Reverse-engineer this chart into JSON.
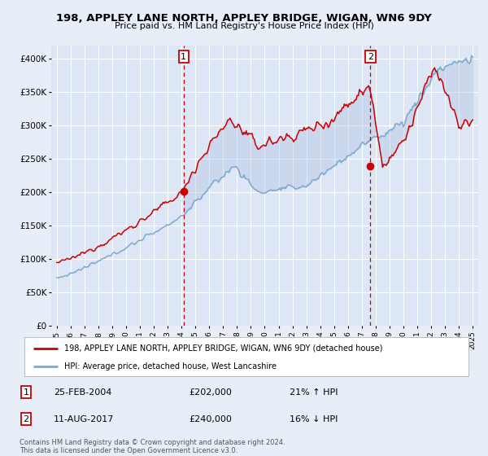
{
  "title": "198, APPLEY LANE NORTH, APPLEY BRIDGE, WIGAN, WN6 9DY",
  "subtitle": "Price paid vs. HM Land Registry's House Price Index (HPI)",
  "bg_color": "#e8eef7",
  "plot_bg_color": "#dce6f5",
  "grid_color": "#ffffff",
  "fill_color": "#c8d8f0",
  "red_line_color": "#cc0000",
  "blue_line_color": "#7aaad0",
  "vline_color": "#cc0000",
  "marker1_x": 2004.15,
  "marker2_x": 2017.62,
  "legend_entries": [
    "198, APPLEY LANE NORTH, APPLEY BRIDGE, WIGAN, WN6 9DY (detached house)",
    "HPI: Average price, detached house, West Lancashire"
  ],
  "annotation1": [
    "1",
    "25-FEB-2004",
    "£202,000",
    "21% ↑ HPI"
  ],
  "annotation2": [
    "2",
    "11-AUG-2017",
    "£240,000",
    "16% ↓ HPI"
  ],
  "footer": "Contains HM Land Registry data © Crown copyright and database right 2024.\nThis data is licensed under the Open Government Licence v3.0.",
  "ylim": [
    0,
    420000
  ],
  "yticks": [
    0,
    50000,
    100000,
    150000,
    200000,
    250000,
    300000,
    350000,
    400000
  ],
  "xlim": [
    1994.6,
    2025.4
  ],
  "xticks": [
    1995,
    1996,
    1997,
    1998,
    1999,
    2000,
    2001,
    2002,
    2003,
    2004,
    2005,
    2006,
    2007,
    2008,
    2009,
    2010,
    2011,
    2012,
    2013,
    2014,
    2015,
    2016,
    2017,
    2018,
    2019,
    2020,
    2021,
    2022,
    2023,
    2024,
    2025
  ]
}
